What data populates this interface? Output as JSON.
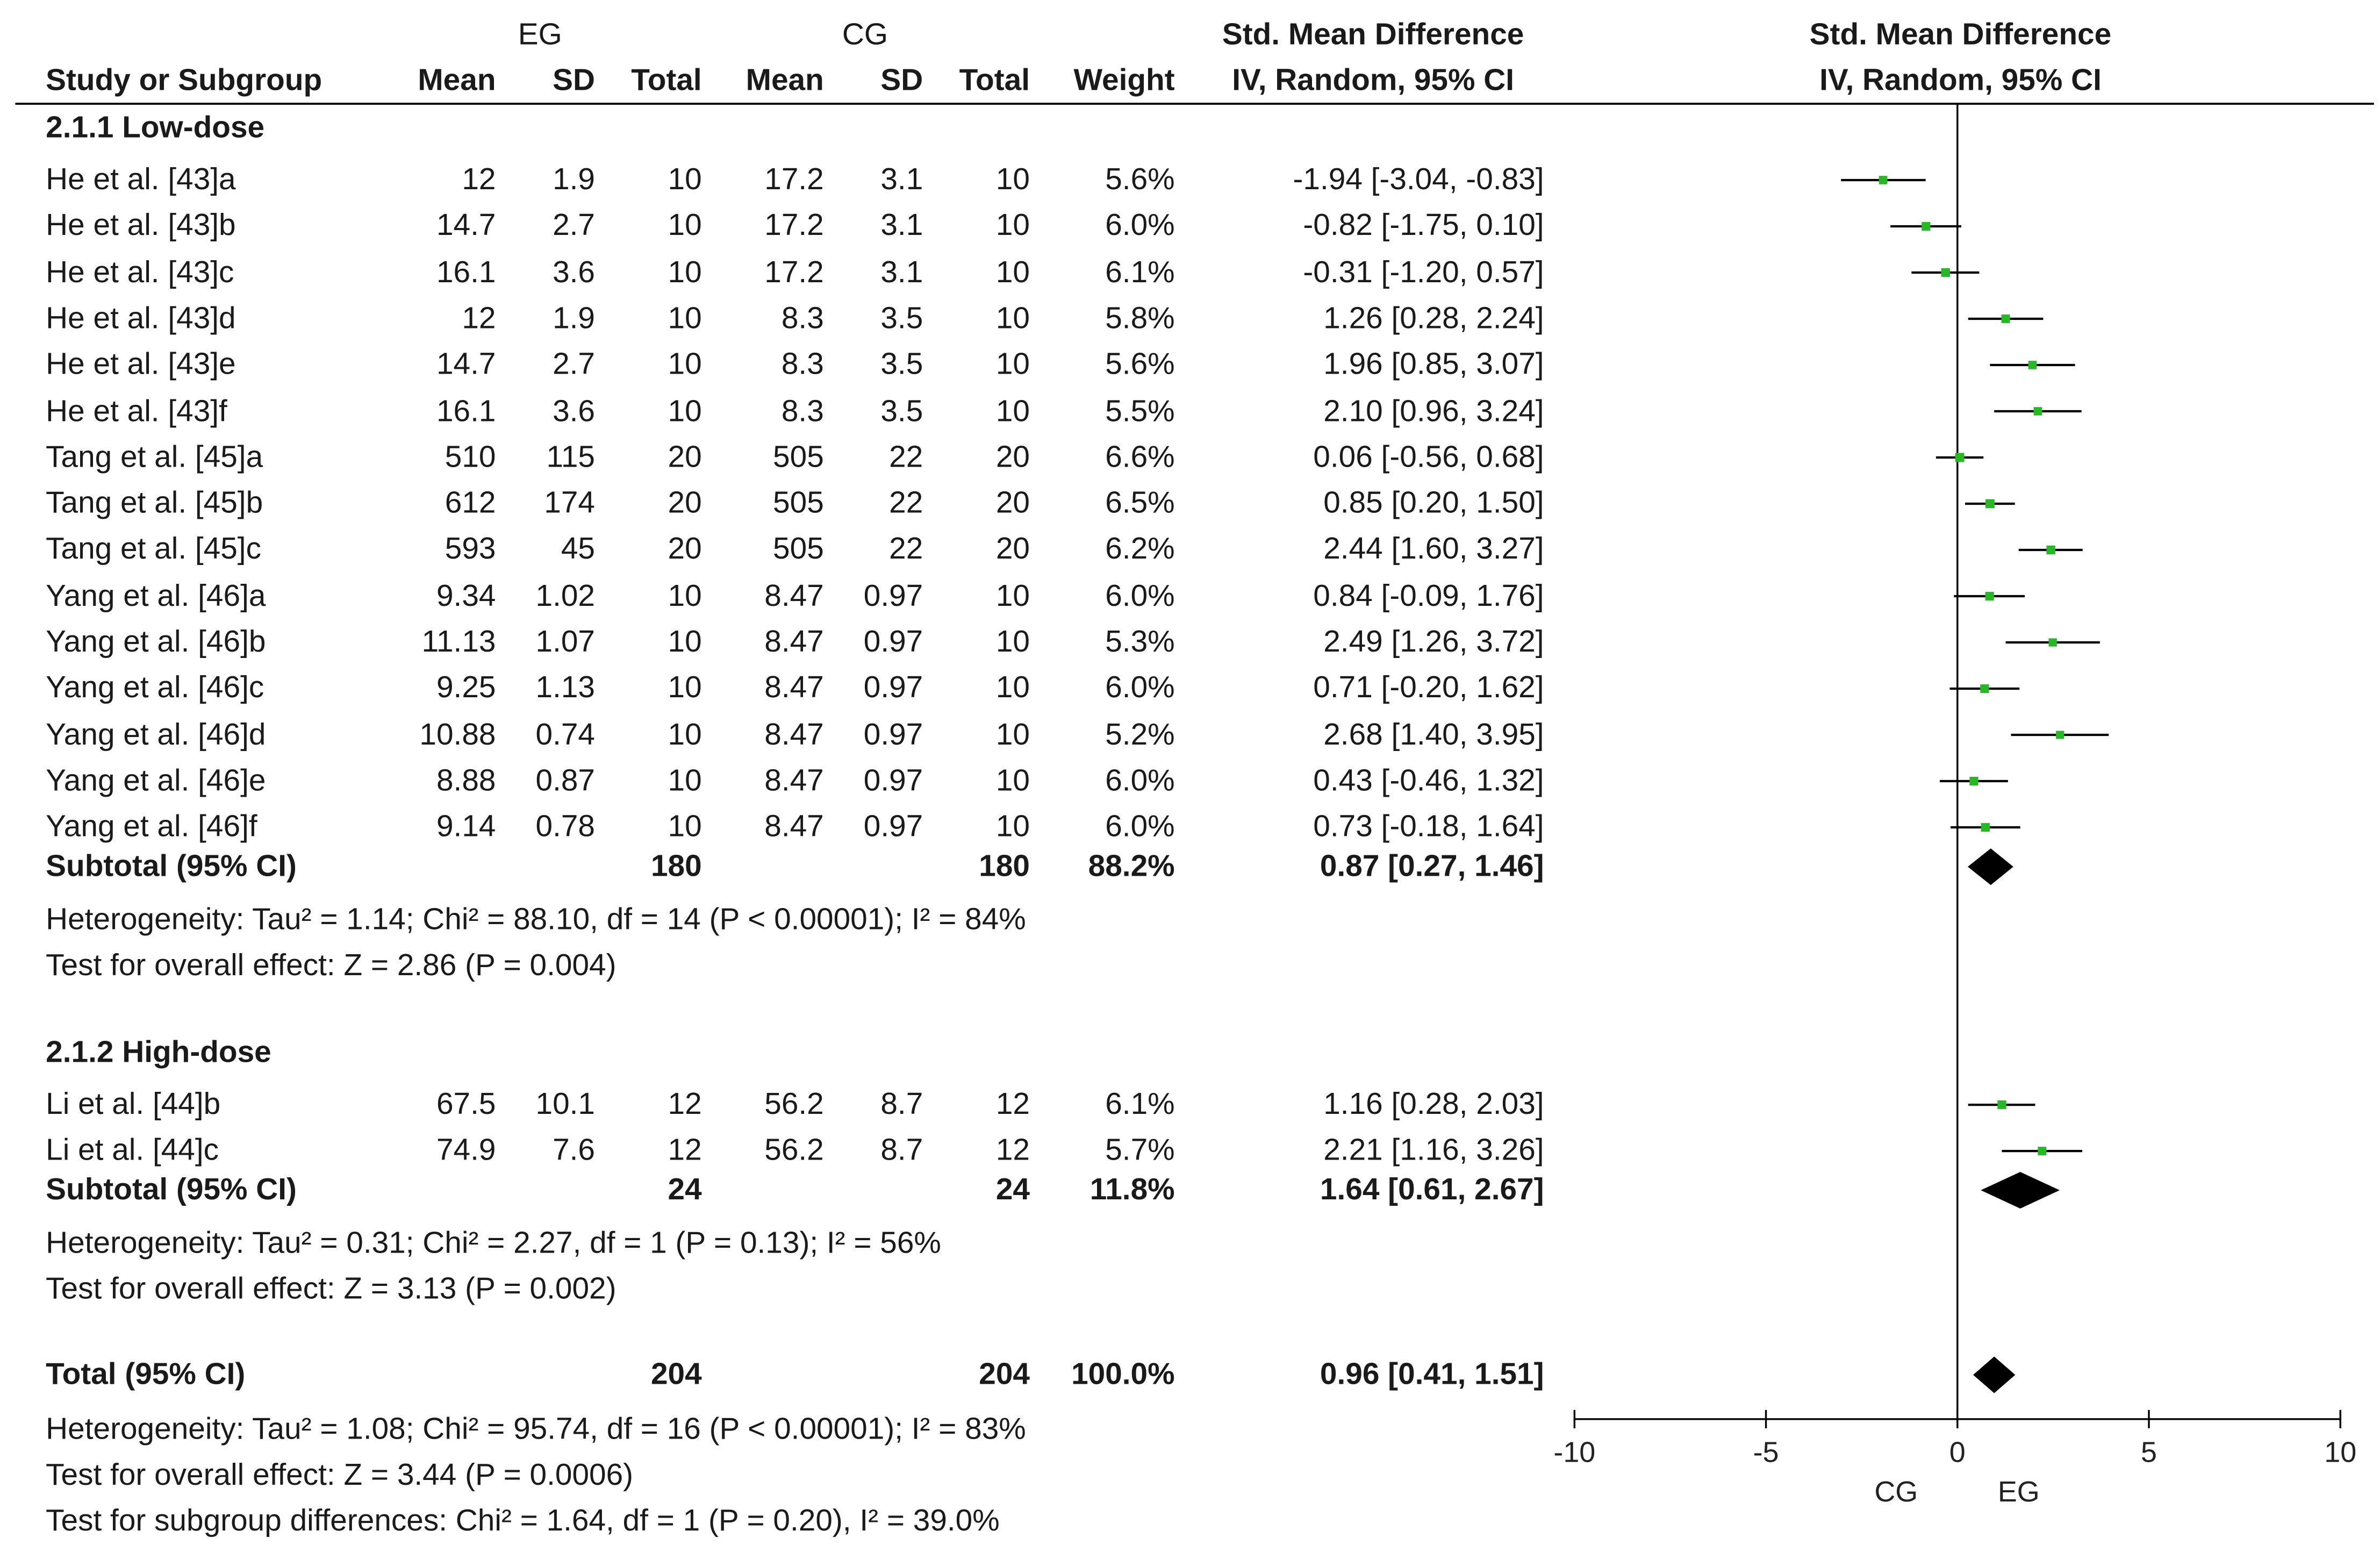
{
  "header": {
    "group_eg": "EG",
    "group_cg": "CG",
    "smd_title": "Std. Mean Difference",
    "smd_method": "IV, Random, 95% CI",
    "plot_title": "Std. Mean Difference",
    "plot_method": "IV, Random, 95% CI",
    "columns": {
      "study": "Study or Subgroup",
      "eg_mean": "Mean",
      "eg_sd": "SD",
      "eg_total": "Total",
      "cg_mean": "Mean",
      "cg_sd": "SD",
      "cg_total": "Total",
      "weight": "Weight"
    }
  },
  "subgroups": [
    {
      "title": "2.1.1 Low-dose",
      "studies": [
        {
          "name": "He et al. [43]a",
          "eg_mean": "12",
          "eg_sd": "1.9",
          "eg_total": "10",
          "cg_mean": "17.2",
          "cg_sd": "3.1",
          "cg_total": "10",
          "weight": "5.6%",
          "ci_text": "-1.94 [-3.04, -0.83]"
        },
        {
          "name": "He et al. [43]b",
          "eg_mean": "14.7",
          "eg_sd": "2.7",
          "eg_total": "10",
          "cg_mean": "17.2",
          "cg_sd": "3.1",
          "cg_total": "10",
          "weight": "6.0%",
          "ci_text": "-0.82 [-1.75, 0.10]"
        },
        {
          "name": "He et al. [43]c",
          "eg_mean": "16.1",
          "eg_sd": "3.6",
          "eg_total": "10",
          "cg_mean": "17.2",
          "cg_sd": "3.1",
          "cg_total": "10",
          "weight": "6.1%",
          "ci_text": "-0.31 [-1.20, 0.57]"
        },
        {
          "name": "He et al. [43]d",
          "eg_mean": "12",
          "eg_sd": "1.9",
          "eg_total": "10",
          "cg_mean": "8.3",
          "cg_sd": "3.5",
          "cg_total": "10",
          "weight": "5.8%",
          "ci_text": "1.26 [0.28, 2.24]"
        },
        {
          "name": "He et al. [43]e",
          "eg_mean": "14.7",
          "eg_sd": "2.7",
          "eg_total": "10",
          "cg_mean": "8.3",
          "cg_sd": "3.5",
          "cg_total": "10",
          "weight": "5.6%",
          "ci_text": "1.96 [0.85, 3.07]"
        },
        {
          "name": "He et al. [43]f",
          "eg_mean": "16.1",
          "eg_sd": "3.6",
          "eg_total": "10",
          "cg_mean": "8.3",
          "cg_sd": "3.5",
          "cg_total": "10",
          "weight": "5.5%",
          "ci_text": "2.10 [0.96, 3.24]"
        },
        {
          "name": "Tang et al. [45]a",
          "eg_mean": "510",
          "eg_sd": "115",
          "eg_total": "20",
          "cg_mean": "505",
          "cg_sd": "22",
          "cg_total": "20",
          "weight": "6.6%",
          "ci_text": "0.06 [-0.56, 0.68]"
        },
        {
          "name": "Tang et al. [45]b",
          "eg_mean": "612",
          "eg_sd": "174",
          "eg_total": "20",
          "cg_mean": "505",
          "cg_sd": "22",
          "cg_total": "20",
          "weight": "6.5%",
          "ci_text": "0.85 [0.20, 1.50]"
        },
        {
          "name": "Tang et al. [45]c",
          "eg_mean": "593",
          "eg_sd": "45",
          "eg_total": "20",
          "cg_mean": "505",
          "cg_sd": "22",
          "cg_total": "20",
          "weight": "6.2%",
          "ci_text": "2.44 [1.60, 3.27]"
        },
        {
          "name": "Yang et al. [46]a",
          "eg_mean": "9.34",
          "eg_sd": "1.02",
          "eg_total": "10",
          "cg_mean": "8.47",
          "cg_sd": "0.97",
          "cg_total": "10",
          "weight": "6.0%",
          "ci_text": "0.84 [-0.09, 1.76]"
        },
        {
          "name": "Yang et al. [46]b",
          "eg_mean": "11.13",
          "eg_sd": "1.07",
          "eg_total": "10",
          "cg_mean": "8.47",
          "cg_sd": "0.97",
          "cg_total": "10",
          "weight": "5.3%",
          "ci_text": "2.49 [1.26, 3.72]"
        },
        {
          "name": "Yang et al. [46]c",
          "eg_mean": "9.25",
          "eg_sd": "1.13",
          "eg_total": "10",
          "cg_mean": "8.47",
          "cg_sd": "0.97",
          "cg_total": "10",
          "weight": "6.0%",
          "ci_text": "0.71 [-0.20, 1.62]"
        },
        {
          "name": "Yang et al. [46]d",
          "eg_mean": "10.88",
          "eg_sd": "0.74",
          "eg_total": "10",
          "cg_mean": "8.47",
          "cg_sd": "0.97",
          "cg_total": "10",
          "weight": "5.2%",
          "ci_text": "2.68 [1.40, 3.95]"
        },
        {
          "name": "Yang et al. [46]e",
          "eg_mean": "8.88",
          "eg_sd": "0.87",
          "eg_total": "10",
          "cg_mean": "8.47",
          "cg_sd": "0.97",
          "cg_total": "10",
          "weight": "6.0%",
          "ci_text": "0.43 [-0.46, 1.32]"
        },
        {
          "name": "Yang et al. [46]f",
          "eg_mean": "9.14",
          "eg_sd": "0.78",
          "eg_total": "10",
          "cg_mean": "8.47",
          "cg_sd": "0.97",
          "cg_total": "10",
          "weight": "6.0%",
          "ci_text": "0.73 [-0.18, 1.64]"
        }
      ],
      "subtotal": {
        "label": "Subtotal (95% CI)",
        "eg_total": "180",
        "cg_total": "180",
        "weight": "88.2%",
        "ci_text": "0.87 [0.27, 1.46]"
      },
      "heterogeneity": "Heterogeneity: Tau² = 1.14; Chi² = 88.10, df = 14 (P < 0.00001); I² = 84%",
      "overall": "Test for overall effect: Z = 2.86 (P = 0.004)"
    },
    {
      "title": "2.1.2 High-dose",
      "studies": [
        {
          "name": "Li et al. [44]b",
          "eg_mean": "67.5",
          "eg_sd": "10.1",
          "eg_total": "12",
          "cg_mean": "56.2",
          "cg_sd": "8.7",
          "cg_total": "12",
          "weight": "6.1%",
          "ci_text": "1.16 [0.28, 2.03]"
        },
        {
          "name": "Li et al. [44]c",
          "eg_mean": "74.9",
          "eg_sd": "7.6",
          "eg_total": "12",
          "cg_mean": "56.2",
          "cg_sd": "8.7",
          "cg_total": "12",
          "weight": "5.7%",
          "ci_text": "2.21 [1.16, 3.26]"
        }
      ],
      "subtotal": {
        "label": "Subtotal (95% CI)",
        "eg_total": "24",
        "cg_total": "24",
        "weight": "11.8%",
        "ci_text": "1.64 [0.61, 2.67]"
      },
      "heterogeneity": "Heterogeneity: Tau² = 0.31; Chi² = 2.27, df = 1 (P = 0.13); I² = 56%",
      "overall": "Test for overall effect: Z = 3.13 (P = 0.002)"
    }
  ],
  "total": {
    "label": "Total (95% CI)",
    "eg_total": "204",
    "cg_total": "204",
    "weight": "100.0%",
    "ci_text": "0.96 [0.41, 1.51]",
    "heterogeneity": "Heterogeneity: Tau² = 1.08; Chi² = 95.74, df = 16 (P < 0.00001); I² = 83%",
    "overall": "Test for overall effect: Z = 3.44 (P = 0.0006)",
    "subgroup_diff": "Test for subgroup differences: Chi² = 1.64, df = 1 (P = 0.20), I² = 39.0%"
  },
  "chart_data": {
    "type": "forest",
    "title": "Std. Mean Difference",
    "subtitle": "IV, Random, 95% CI",
    "xlim": [
      -10,
      10
    ],
    "ticks": [
      -10,
      -5,
      0,
      5,
      10
    ],
    "tick_labels": [
      "-10",
      "-5",
      "0",
      "5",
      "10"
    ],
    "favours_left": "CG",
    "favours_right": "EG",
    "colors": {
      "marker": "#27b727",
      "line": "#000000",
      "diamond": "#000000"
    },
    "studies": [
      {
        "label": "He et al. [43]a",
        "est": -1.94,
        "lo": -3.04,
        "hi": -0.83,
        "weight": 5.6
      },
      {
        "label": "He et al. [43]b",
        "est": -0.82,
        "lo": -1.75,
        "hi": 0.1,
        "weight": 6.0
      },
      {
        "label": "He et al. [43]c",
        "est": -0.31,
        "lo": -1.2,
        "hi": 0.57,
        "weight": 6.1
      },
      {
        "label": "He et al. [43]d",
        "est": 1.26,
        "lo": 0.28,
        "hi": 2.24,
        "weight": 5.8
      },
      {
        "label": "He et al. [43]e",
        "est": 1.96,
        "lo": 0.85,
        "hi": 3.07,
        "weight": 5.6
      },
      {
        "label": "He et al. [43]f",
        "est": 2.1,
        "lo": 0.96,
        "hi": 3.24,
        "weight": 5.5
      },
      {
        "label": "Tang et al. [45]a",
        "est": 0.06,
        "lo": -0.56,
        "hi": 0.68,
        "weight": 6.6
      },
      {
        "label": "Tang et al. [45]b",
        "est": 0.85,
        "lo": 0.2,
        "hi": 1.5,
        "weight": 6.5
      },
      {
        "label": "Tang et al. [45]c",
        "est": 2.44,
        "lo": 1.6,
        "hi": 3.27,
        "weight": 6.2
      },
      {
        "label": "Yang et al. [46]a",
        "est": 0.84,
        "lo": -0.09,
        "hi": 1.76,
        "weight": 6.0
      },
      {
        "label": "Yang et al. [46]b",
        "est": 2.49,
        "lo": 1.26,
        "hi": 3.72,
        "weight": 5.3
      },
      {
        "label": "Yang et al. [46]c",
        "est": 0.71,
        "lo": -0.2,
        "hi": 1.62,
        "weight": 6.0
      },
      {
        "label": "Yang et al. [46]d",
        "est": 2.68,
        "lo": 1.4,
        "hi": 3.95,
        "weight": 5.2
      },
      {
        "label": "Yang et al. [46]e",
        "est": 0.43,
        "lo": -0.46,
        "hi": 1.32,
        "weight": 6.0
      },
      {
        "label": "Yang et al. [46]f",
        "est": 0.73,
        "lo": -0.18,
        "hi": 1.64,
        "weight": 6.0
      },
      {
        "label": "Li et al. [44]b",
        "est": 1.16,
        "lo": 0.28,
        "hi": 2.03,
        "weight": 6.1
      },
      {
        "label": "Li et al. [44]c",
        "est": 2.21,
        "lo": 1.16,
        "hi": 3.26,
        "weight": 5.7
      }
    ],
    "diamonds": [
      {
        "label": "Subtotal Low-dose",
        "est": 0.87,
        "lo": 0.27,
        "hi": 1.46
      },
      {
        "label": "Subtotal High-dose",
        "est": 1.64,
        "lo": 0.61,
        "hi": 2.67
      },
      {
        "label": "Total",
        "est": 0.96,
        "lo": 0.41,
        "hi": 1.51
      }
    ]
  }
}
